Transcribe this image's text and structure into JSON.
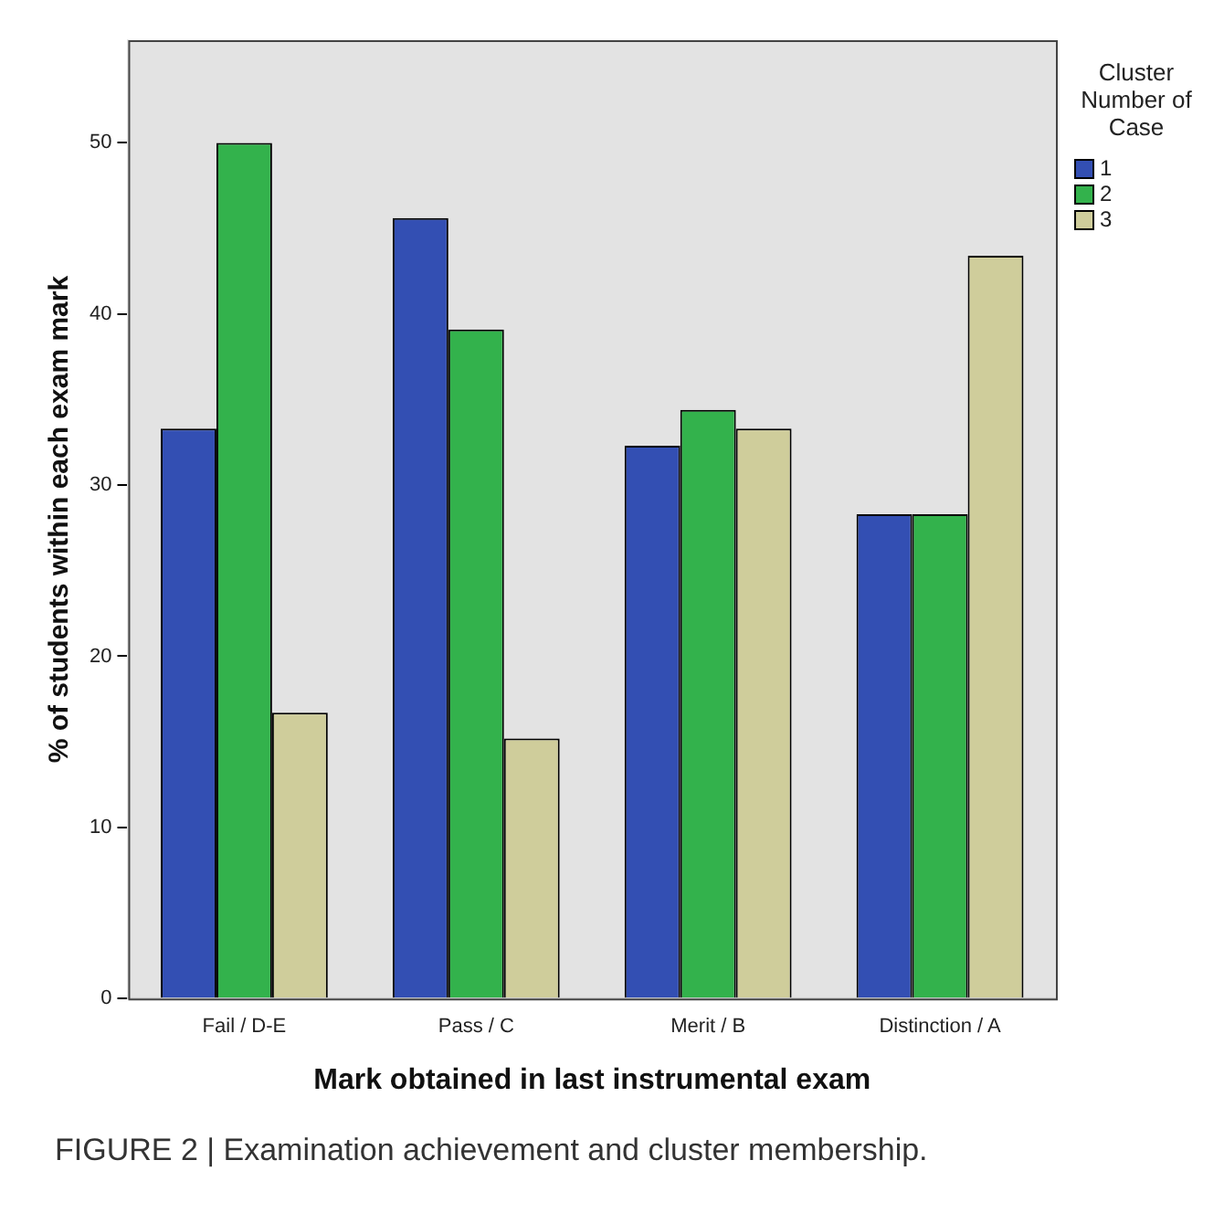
{
  "chart_data": {
    "type": "bar",
    "xlabel": "Mark obtained in last instrumental exam",
    "ylabel": "% of students within each exam mark",
    "legend_title": "Cluster Number of Case",
    "legend": "top right",
    "grid": false,
    "categories": [
      "Fail / D-E",
      "Pass / C",
      "Merit / B",
      "Distinction / A"
    ],
    "series": [
      {
        "name": "1",
        "color": "#334fb3",
        "values": [
          33.3,
          45.6,
          32.3,
          28.3
        ]
      },
      {
        "name": "2",
        "color": "#33b24c",
        "values": [
          50,
          39.1,
          34.4,
          28.3
        ]
      },
      {
        "name": "3",
        "color": "#cfcd9b",
        "values": [
          16.7,
          15.2,
          33.3,
          43.4
        ]
      }
    ],
    "ylim": [
      0,
      56
    ],
    "yticks": [
      0,
      10,
      20,
      30,
      40,
      50
    ],
    "annotations": [
      "FIGURE 2 | Examination achievement and cluster membership."
    ]
  }
}
